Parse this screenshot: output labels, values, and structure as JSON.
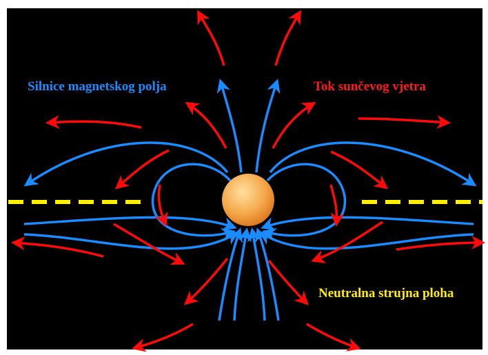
{
  "labels": {
    "magnetic_field": "Silnice magnetskog polja",
    "solar_wind": "Tok sunčevog vjetra",
    "current_sheet": "Neutralna strujna ploha"
  }
}
